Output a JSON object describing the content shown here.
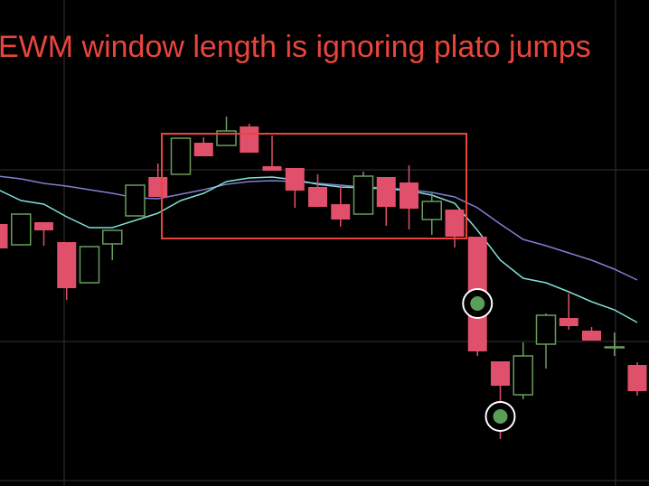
{
  "chart_data": {
    "type": "candlestick",
    "title": "EWM window length is ignoring plato jumps",
    "ylim": [
      0,
      538
    ],
    "grid": true,
    "candles": {
      "open": [
        290,
        267,
        292,
        270,
        225,
        268,
        299,
        342,
        345,
        380,
        377,
        398,
        354,
        352,
        331,
        312,
        301,
        342,
        336,
        295,
        306,
        276,
        138,
        101,
        157,
        186,
        172,
        154,
        134
      ],
      "high": [
        290,
        301,
        292,
        270,
        265,
        283,
        333,
        357,
        385,
        386,
        409,
        401,
        388,
        352,
        345,
        333,
        348,
        342,
        355,
        324,
        306,
        276,
        138,
        159,
        191,
        213,
        176,
        170,
        137
      ],
      "low": [
        263,
        267,
        266,
        206,
        225,
        250,
        299,
        320,
        345,
        365,
        377,
        369,
        349,
        308,
        309,
        287,
        301,
        288,
        284,
        278,
        264,
        144,
        52,
        96,
        130,
        173,
        161,
        144,
        100
      ],
      "close": [
        263,
        301,
        283,
        219,
        265,
        283,
        333,
        320,
        385,
        365,
        393,
        369,
        349,
        327,
        309,
        295,
        343,
        309,
        307,
        315,
        276,
        149,
        111,
        144,
        189,
        177,
        161,
        154,
        105
      ],
      "up_color": "#6a9c5e",
      "down_color": "#e0506a"
    },
    "lines": [
      {
        "color": "#7f80d0",
        "values": [
          343,
          340,
          335,
          332,
          328,
          324,
          319,
          318,
          323,
          328,
          334,
          337,
          338,
          337,
          335,
          333,
          331,
          330,
          328,
          325,
          320,
          308,
          290,
          273,
          266,
          258,
          250,
          240,
          228
        ]
      },
      {
        "color": "#80e0d6",
        "values": [
          328,
          316,
          312,
          298,
          286,
          286,
          294,
          302,
          316,
          324,
          337,
          341,
          342,
          339,
          334,
          331,
          330,
          329,
          327,
          322,
          313,
          283,
          250,
          230,
          225,
          215,
          204,
          195,
          181
        ]
      }
    ],
    "markers": {
      "color": "#5a9e5a",
      "values": [
        null,
        null,
        null,
        null,
        null,
        null,
        null,
        null,
        null,
        null,
        null,
        null,
        null,
        null,
        null,
        null,
        null,
        null,
        null,
        null,
        null,
        202,
        77,
        null,
        null,
        null,
        null,
        null,
        null
      ]
    }
  }
}
